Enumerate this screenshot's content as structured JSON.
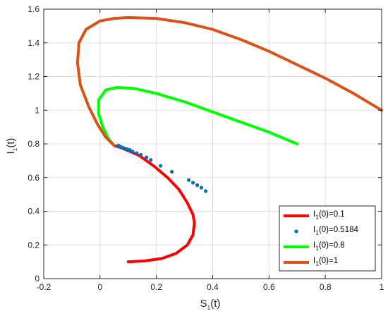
{
  "chart_data": {
    "type": "line",
    "title": "",
    "xlabel": {
      "main": "S",
      "sub": "1",
      "tail": "(t)"
    },
    "ylabel": {
      "main": "I",
      "sub": "1",
      "tail": "(t)"
    },
    "xlim": [
      -0.2,
      1.0
    ],
    "ylim": [
      0,
      1.6
    ],
    "xticks": [
      -0.2,
      0,
      0.2,
      0.4,
      0.6,
      0.8,
      1
    ],
    "xtick_labels": [
      "-0.2",
      "0",
      "0.2",
      "0.4",
      "0.6",
      "0.8",
      "1"
    ],
    "yticks": [
      0,
      0.2,
      0.4,
      0.6,
      0.8,
      1,
      1.2,
      1.4,
      1.6
    ],
    "ytick_labels": [
      "0",
      "0.2",
      "0.4",
      "0.6",
      "0.8",
      "1",
      "1.2",
      "1.4",
      "1.6"
    ],
    "grid": true,
    "legend_position": "bottom-right",
    "series": [
      {
        "name": "0.1",
        "legend_main": "I",
        "legend_sub": "1",
        "legend_tail": "(0)=0.1",
        "color": "#ff0000",
        "style": "line",
        "x": [
          0.1,
          0.16,
          0.22,
          0.27,
          0.31,
          0.33,
          0.335,
          0.33,
          0.31,
          0.28,
          0.24,
          0.19,
          0.14,
          0.1,
          0.07,
          0.05
        ],
        "y": [
          0.1,
          0.105,
          0.12,
          0.15,
          0.2,
          0.26,
          0.33,
          0.38,
          0.45,
          0.53,
          0.6,
          0.67,
          0.73,
          0.76,
          0.78,
          0.79
        ]
      },
      {
        "name": "0.5184",
        "legend_main": "I",
        "legend_sub": "1",
        "legend_tail": "(0)=0.5184",
        "color": "#0072bd",
        "style": "dots",
        "x": [
          0.375,
          0.36,
          0.345,
          0.33,
          0.315,
          0.255,
          0.215,
          0.18,
          0.165,
          0.145,
          0.13,
          0.115,
          0.105,
          0.095,
          0.085,
          0.077,
          0.07,
          0.065
        ],
        "y": [
          0.52,
          0.54,
          0.555,
          0.57,
          0.585,
          0.635,
          0.67,
          0.705,
          0.72,
          0.735,
          0.745,
          0.755,
          0.765,
          0.77,
          0.775,
          0.78,
          0.785,
          0.79
        ]
      },
      {
        "name": "0.8",
        "legend_main": "I",
        "legend_sub": "1",
        "legend_tail": "(0)=0.8",
        "color": "#00ff00",
        "style": "line",
        "x": [
          0.7,
          0.6,
          0.5,
          0.4,
          0.3,
          0.2,
          0.12,
          0.06,
          0.02,
          -0.005,
          -0.005,
          0.01,
          0.03,
          0.05
        ],
        "y": [
          0.8,
          0.87,
          0.93,
          0.99,
          1.05,
          1.1,
          1.13,
          1.135,
          1.12,
          1.06,
          0.98,
          0.9,
          0.83,
          0.79
        ]
      },
      {
        "name": "1",
        "legend_main": "I",
        "legend_sub": "1",
        "legend_tail": "(0)=1",
        "color": "#d95319",
        "style": "line",
        "x": [
          1.0,
          0.9,
          0.8,
          0.7,
          0.6,
          0.5,
          0.4,
          0.3,
          0.2,
          0.1,
          0.05,
          0.0,
          -0.05,
          -0.075,
          -0.08,
          -0.07,
          -0.04,
          -0.01,
          0.02,
          0.05
        ],
        "y": [
          1.0,
          1.1,
          1.19,
          1.27,
          1.35,
          1.42,
          1.48,
          1.52,
          1.545,
          1.55,
          1.545,
          1.53,
          1.48,
          1.4,
          1.28,
          1.15,
          1.02,
          0.92,
          0.84,
          0.79
        ]
      }
    ]
  }
}
